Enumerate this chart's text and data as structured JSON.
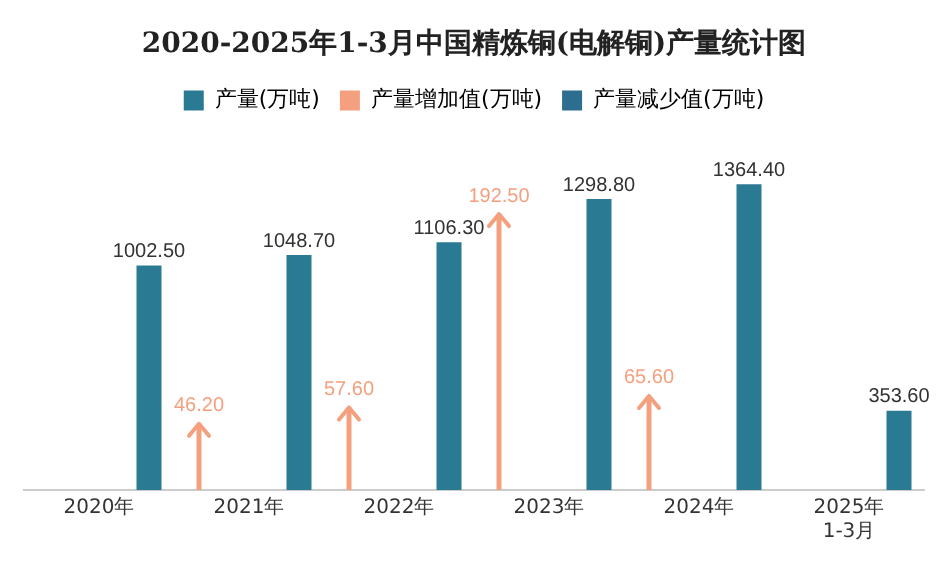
{
  "chart_data": {
    "type": "bar",
    "title": "2020-2025年1-3月中国精炼铜(电解铜)产量统计图",
    "categories": [
      "2020年",
      "2021年",
      "2022年",
      "2023年",
      "2024年",
      "2025年\n1-3月"
    ],
    "series": [
      {
        "name": "产量(万吨)",
        "color": "#2b7a94",
        "values": [
          1002.5,
          1048.7,
          1106.3,
          1298.8,
          1364.4,
          353.6
        ],
        "value_labels": [
          "1002.50",
          "1048.70",
          "1106.30",
          "1298.80",
          "1364.40",
          "353.60"
        ]
      },
      {
        "name": "产量增加值(万吨)",
        "color": "#f4a07f",
        "axis": "y2",
        "values": [
          null,
          46.2,
          57.6,
          192.5,
          65.6,
          null
        ],
        "value_labels": [
          null,
          "46.20",
          "57.60",
          "192.50",
          "65.60",
          null
        ]
      },
      {
        "name": "产量减少值(万吨)",
        "color": "#2b6e8f",
        "axis": "y2",
        "values": [
          null,
          null,
          null,
          null,
          null,
          null
        ]
      }
    ],
    "tick_labels": "x",
    "legend": "top",
    "grid": false
  }
}
